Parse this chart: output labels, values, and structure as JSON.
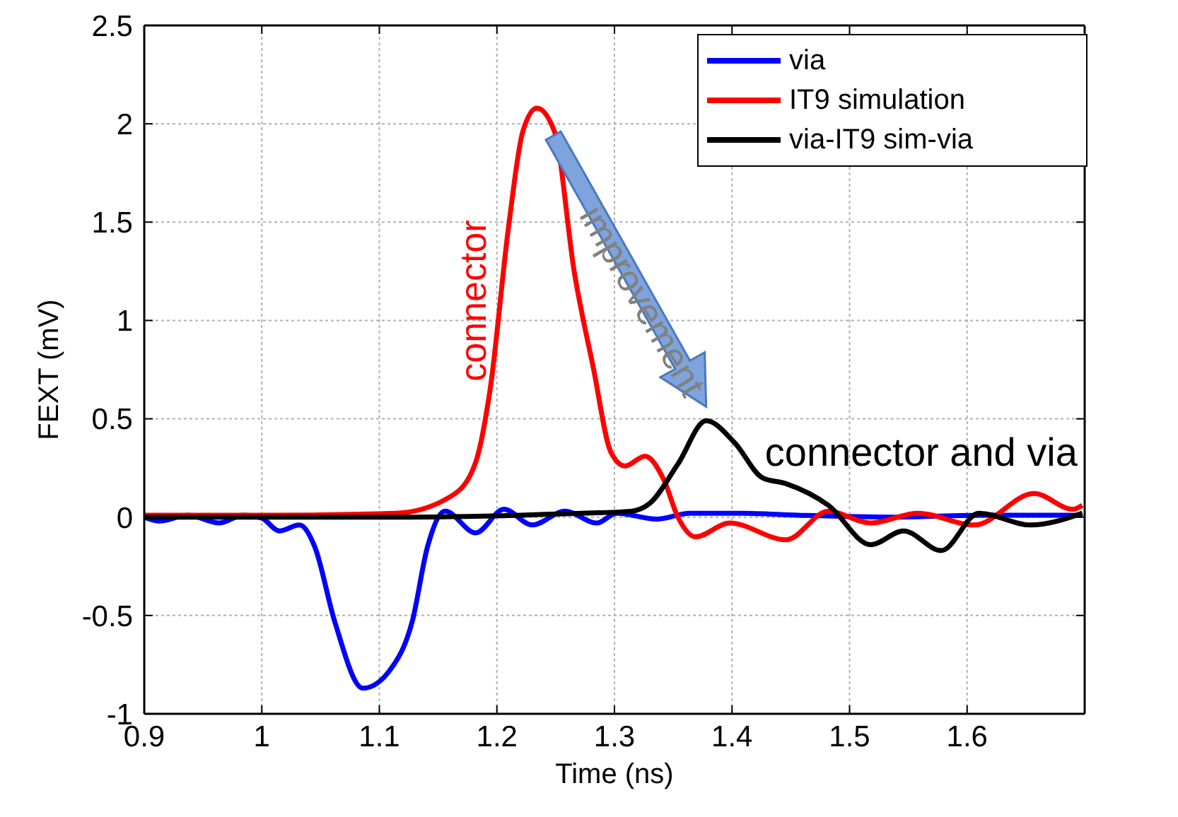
{
  "chart_data": {
    "type": "line",
    "xlabel": "Time (ns)",
    "ylabel": "FEXT (mV)",
    "xlim": [
      0.9,
      1.7
    ],
    "xticks": [
      0.9,
      1,
      1.1,
      1.2,
      1.3,
      1.4,
      1.5,
      1.6
    ],
    "ylim": [
      -1,
      2.5
    ],
    "yticks": [
      -1,
      -0.5,
      0,
      0.5,
      1,
      1.5,
      2,
      2.5
    ],
    "grid": true,
    "legend": "top right",
    "line_style": "solid",
    "marker": "none",
    "annotations": [
      "connector",
      {
        "text": "improvement",
        "x": 1.378,
        "y": 0.49
      },
      "connector and via"
    ],
    "series": [
      {
        "name": "via",
        "color": "#0000ff",
        "x": [
          0.9,
          0.913,
          0.937,
          0.964,
          0.984,
          1.0,
          1.015,
          1.032,
          1.045,
          1.062,
          1.086,
          1.11,
          1.128,
          1.141,
          1.156,
          1.182,
          1.206,
          1.23,
          1.258,
          1.285,
          1.302,
          1.336,
          1.364,
          1.408,
          1.456,
          1.536,
          1.616,
          1.698
        ],
        "values": [
          0,
          -0.02,
          0.01,
          -0.03,
          0.01,
          -0.005,
          -0.07,
          -0.04,
          -0.15,
          -0.53,
          -0.87,
          -0.77,
          -0.53,
          -0.15,
          0.03,
          -0.08,
          0.04,
          -0.04,
          0.03,
          -0.03,
          0.02,
          -0.01,
          0.02,
          0.02,
          0.01,
          0,
          0.01,
          0.01
        ]
      },
      {
        "name": "IT9 simulation",
        "color": "#ff0000",
        "x": [
          0.9,
          1.0,
          1.114,
          1.162,
          1.182,
          1.194,
          1.21,
          1.222,
          1.234,
          1.249,
          1.266,
          1.282,
          1.297,
          1.309,
          1.326,
          1.342,
          1.354,
          1.369,
          1.398,
          1.446,
          1.482,
          1.518,
          1.558,
          1.606,
          1.657,
          1.69,
          1.698
        ],
        "values": [
          0.01,
          0.01,
          0.02,
          0.11,
          0.28,
          0.64,
          1.48,
          1.96,
          2.08,
          1.96,
          1.24,
          0.76,
          0.33,
          0.26,
          0.31,
          0.19,
          0,
          -0.1,
          -0.03,
          -0.115,
          0.03,
          -0.03,
          0.02,
          -0.04,
          0.12,
          0.04,
          0.06
        ]
      },
      {
        "name": "via-IT9 sim-via",
        "color": "#000000",
        "x": [
          0.9,
          1.114,
          1.22,
          1.273,
          1.314,
          1.33,
          1.354,
          1.378,
          1.402,
          1.426,
          1.446,
          1.482,
          1.518,
          1.546,
          1.578,
          1.61,
          1.654,
          1.698
        ],
        "values": [
          0,
          0,
          0.01,
          0.02,
          0.03,
          0.07,
          0.27,
          0.49,
          0.38,
          0.2,
          0.17,
          0.06,
          -0.14,
          -0.07,
          -0.17,
          0.02,
          -0.04,
          0.02
        ]
      }
    ]
  }
}
